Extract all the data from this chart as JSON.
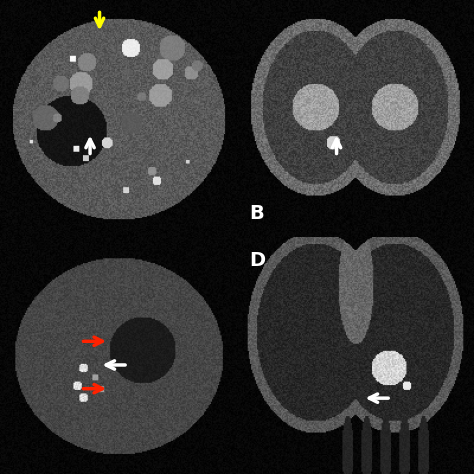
{
  "figure_size": [
    4.74,
    4.74
  ],
  "dpi": 100,
  "background_color": "#000000",
  "label_fontsize": 14,
  "label_color": "#ffffff",
  "panels": {
    "A": {
      "style": "axial_bright",
      "seed": 42
    },
    "B": {
      "style": "coronal_dark",
      "seed": 73
    },
    "C": {
      "style": "axial_dark",
      "seed": 99
    },
    "D": {
      "style": "coronal_large",
      "seed": 15
    }
  }
}
